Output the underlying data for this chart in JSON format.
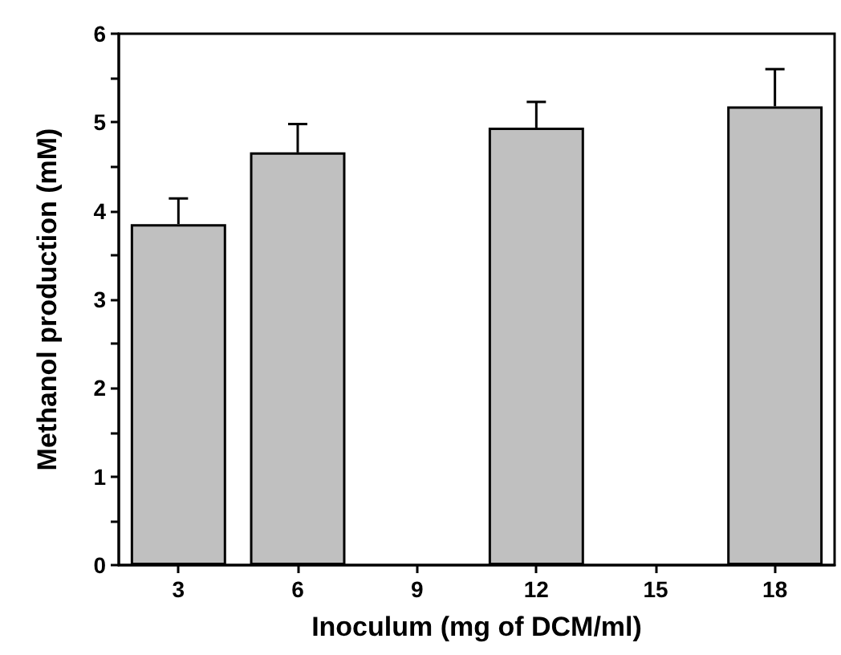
{
  "chart_data": {
    "type": "bar",
    "xlabel": "Inoculum (mg of DCM/ml)",
    "ylabel": "Methanol production (mM)",
    "categories": [
      "3",
      "6",
      "9",
      "12",
      "15",
      "18"
    ],
    "values": [
      3.85,
      4.66,
      null,
      4.94,
      null,
      5.18
    ],
    "errors": [
      [
        3.85,
        4.14
      ],
      [
        4.66,
        4.98
      ],
      null,
      [
        4.94,
        5.23
      ],
      null,
      [
        5.18,
        5.6
      ]
    ],
    "color": "#c0c0c0",
    "ylim": [
      0,
      6
    ],
    "yticks": [
      0,
      {
        "value": 0.5,
        "label": null
      },
      1,
      {
        "value": 1.5,
        "label": null
      },
      2,
      {
        "value": 2.5,
        "label": null
      },
      3,
      {
        "value": 3.5,
        "label": null
      },
      4,
      {
        "value": 4.5,
        "label": null
      },
      5,
      {
        "value": 5.5,
        "label": null
      },
      6
    ],
    "grid": false
  }
}
